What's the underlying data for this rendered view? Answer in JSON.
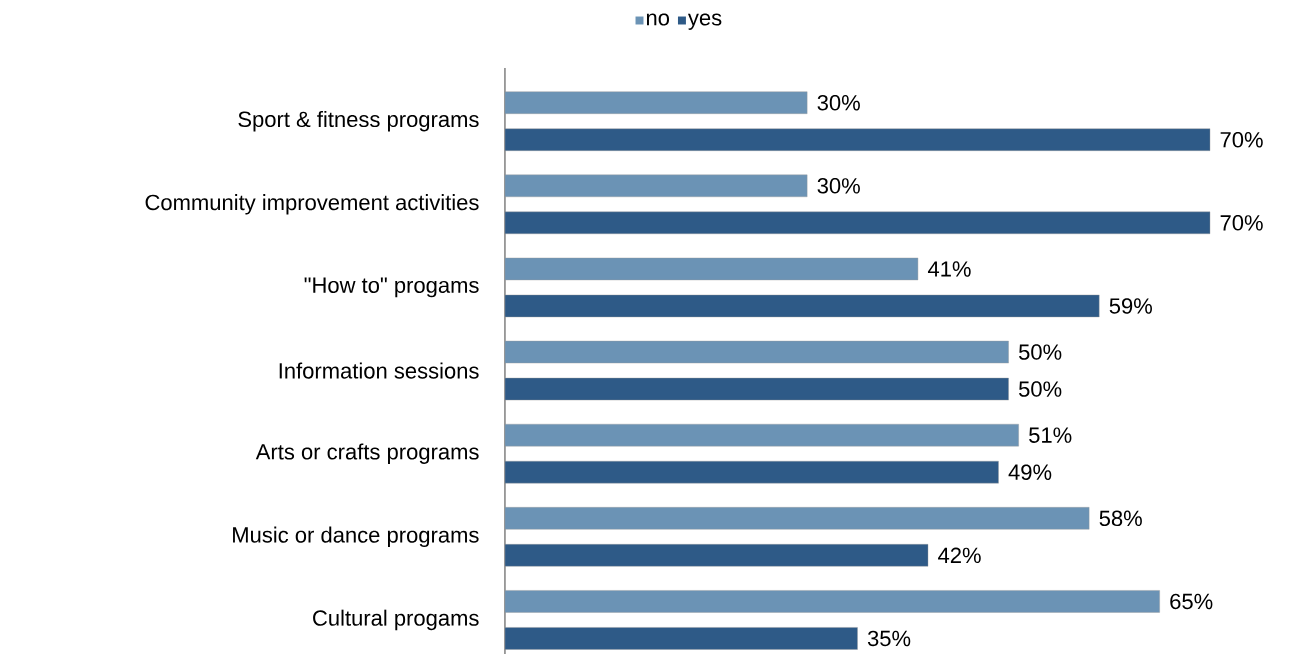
{
  "chart_data": {
    "type": "bar",
    "orientation": "horizontal",
    "categories": [
      "Sport & fitness programs",
      "Community improvement activities",
      "\"How to\" progams",
      "Information sessions",
      "Arts or crafts programs",
      "Music or dance programs",
      "Cultural progams"
    ],
    "series": [
      {
        "name": "no",
        "color": "#6b93b5",
        "values": [
          30,
          30,
          41,
          50,
          51,
          58,
          65
        ],
        "value_labels": [
          "30%",
          "30%",
          "41%",
          "50%",
          "51%",
          "58%",
          "65%"
        ]
      },
      {
        "name": "yes",
        "color": "#2e5a87",
        "values": [
          70,
          70,
          59,
          50,
          49,
          42,
          35
        ],
        "value_labels": [
          "70%",
          "70%",
          "59%",
          "50%",
          "49%",
          "42%",
          "35%"
        ]
      }
    ],
    "xlim": [
      0,
      70
    ],
    "legend": "top",
    "tick_labels": "y"
  }
}
